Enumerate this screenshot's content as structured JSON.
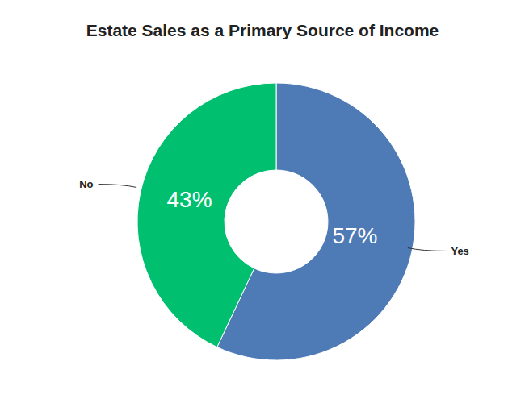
{
  "chart_data": {
    "type": "pie",
    "title": "Estate Sales as a Primary Source of Income",
    "categories": [
      "Yes",
      "No"
    ],
    "values": [
      57,
      43
    ],
    "colors": [
      "#4e7ab5",
      "#00bf6f"
    ],
    "data_labels": true,
    "value_labels": [
      "57%",
      "43%"
    ]
  }
}
